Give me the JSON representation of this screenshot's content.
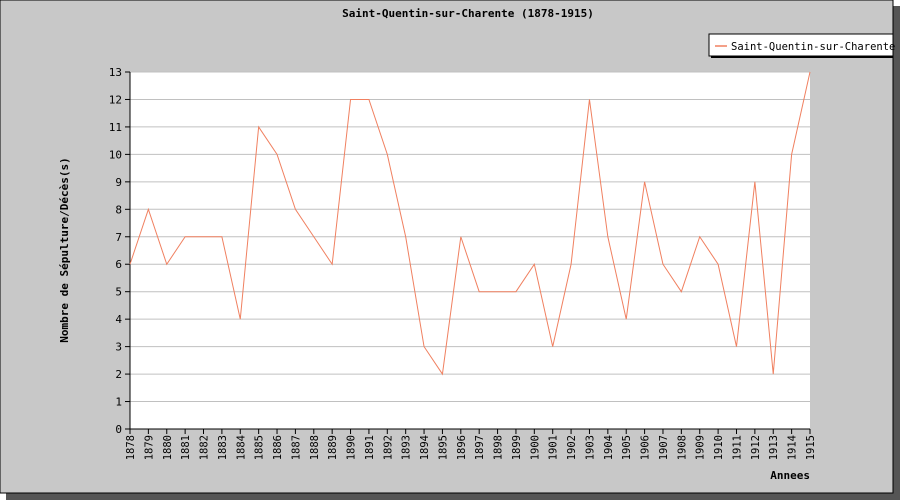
{
  "chart_data": {
    "type": "line",
    "title": "Saint-Quentin-sur-Charente (1878-1915)",
    "xlabel": "Annees",
    "ylabel": "Nombre de Sépulture/Décès(s)",
    "ylim": [
      0,
      13
    ],
    "yticks": [
      0,
      1,
      2,
      3,
      4,
      5,
      6,
      7,
      8,
      9,
      10,
      11,
      12,
      13
    ],
    "grid": true,
    "legend_position": "top-right",
    "colors": {
      "series": "#f08060",
      "background": "#c8c8c8",
      "plot": "#ffffff"
    },
    "categories": [
      "1878",
      "1879",
      "1880",
      "1881",
      "1882",
      "1883",
      "1884",
      "1885",
      "1886",
      "1887",
      "1888",
      "1889",
      "1890",
      "1891",
      "1892",
      "1893",
      "1894",
      "1895",
      "1896",
      "1897",
      "1898",
      "1899",
      "1900",
      "1901",
      "1902",
      "1903",
      "1904",
      "1905",
      "1906",
      "1907",
      "1908",
      "1909",
      "1910",
      "1911",
      "1912",
      "1913",
      "1914",
      "1915"
    ],
    "series": [
      {
        "name": "Saint-Quentin-sur-Charente",
        "values": [
          6,
          8,
          6,
          7,
          7,
          7,
          4,
          11,
          10,
          8,
          7,
          6,
          12,
          12,
          10,
          7,
          3,
          2,
          7,
          5,
          5,
          5,
          6,
          3,
          6,
          12,
          7,
          4,
          9,
          6,
          5,
          7,
          6,
          3,
          9,
          2,
          10,
          13
        ]
      }
    ]
  }
}
